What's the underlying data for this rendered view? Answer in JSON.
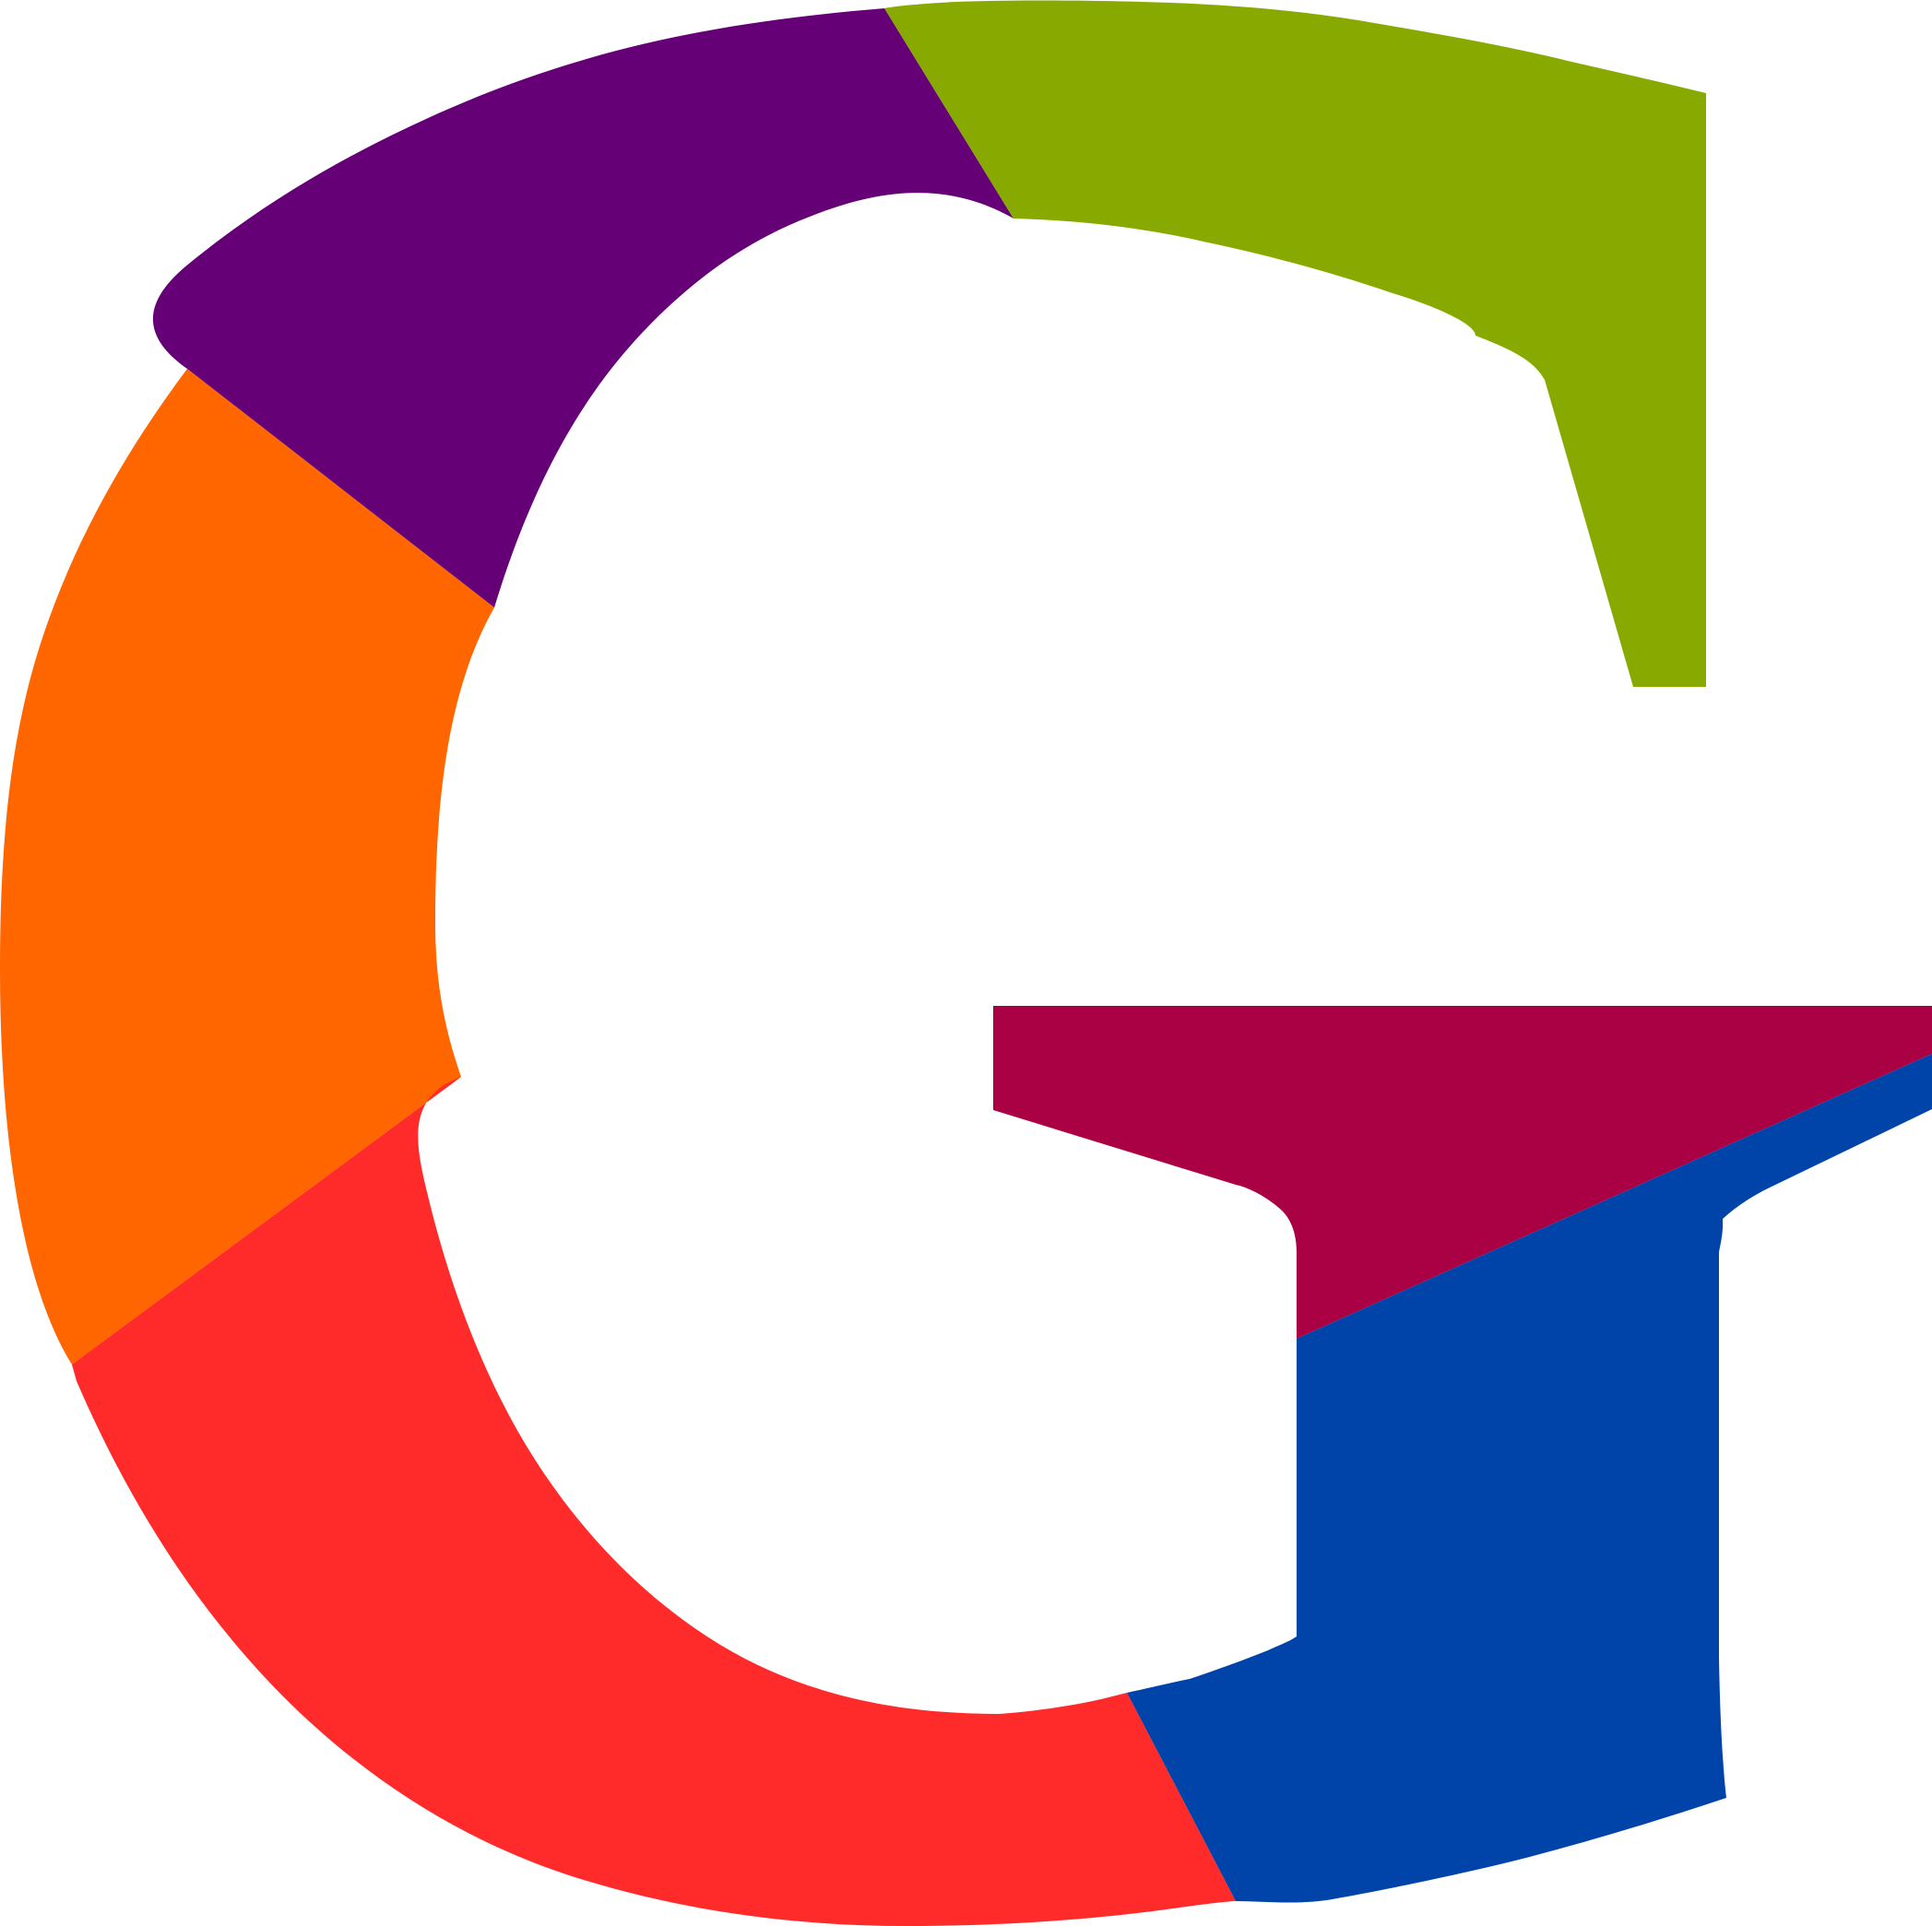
{
  "logo": {
    "icon": "multicolor-letter-g-logo-icon",
    "colors": {
      "purple": "#660077",
      "green": "#88AA00",
      "orange": "#FF6600",
      "red": "#FF2A2A",
      "crimson": "#AA0044",
      "blue": "#0044AA",
      "background": "#FFFFFF"
    }
  }
}
